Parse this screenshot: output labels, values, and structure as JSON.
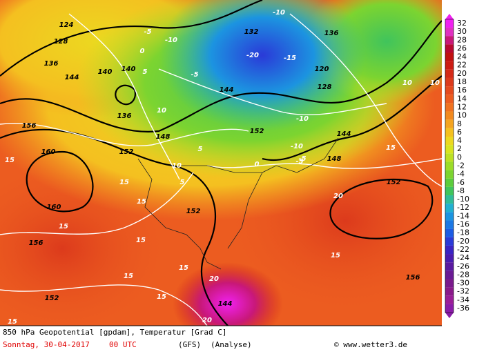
{
  "header": {
    "title": "850 hPa Geopotential [gpdam], Temperatur [Grad C]",
    "date": "Sonntag, 30-04-2017",
    "time": "00 UTC",
    "model": "(GFS)",
    "run": "(Analyse)",
    "credit": "© www.wetter3.de"
  },
  "colorbar": {
    "levels": [
      32,
      30,
      28,
      26,
      24,
      22,
      20,
      18,
      16,
      14,
      12,
      10,
      8,
      6,
      4,
      2,
      0,
      -2,
      -4,
      -6,
      -8,
      -10,
      -12,
      -14,
      -16,
      -18,
      -20,
      -22,
      -24,
      -26,
      -28,
      -30,
      -32,
      -34,
      -36
    ],
    "colors": [
      "#f020f0",
      "#e030c0",
      "#c81878",
      "#b80830",
      "#c01010",
      "#cc1c14",
      "#d42a18",
      "#dc3a1c",
      "#e44a1e",
      "#ec5c20",
      "#f07220",
      "#f28a20",
      "#f4a420",
      "#f4c020",
      "#ecd820",
      "#d8e420",
      "#bce024",
      "#9cdc28",
      "#7cd430",
      "#5ccc3c",
      "#40c45c",
      "#30bc98",
      "#22b0d0",
      "#1c94e0",
      "#1c78e4",
      "#1c5ce4",
      "#2a3ad8",
      "#3a24c4",
      "#4a1cb0",
      "#5a1aa0",
      "#6a1a94",
      "#7a1a8c",
      "#8a1a8a",
      "#9a1e98",
      "#8a1ca8"
    ]
  },
  "map_labels": [
    "124",
    "128",
    "136",
    "144",
    "140",
    "140",
    "136",
    "-5",
    "-10",
    "0",
    "5",
    "132",
    "-20",
    "-15",
    "-10",
    "136",
    "120",
    "128",
    "-10",
    "-5",
    "10",
    "10",
    "15",
    "156",
    "160",
    "160",
    "156",
    "152",
    "152",
    "-5",
    "148",
    "144",
    "152",
    "144",
    "148",
    "-10",
    "5",
    "0",
    "-5",
    "10",
    "15",
    "15",
    "20",
    "15",
    "15",
    "15",
    "15",
    "15",
    "144",
    "20",
    "15",
    "20",
    "15",
    "5",
    "10",
    "156",
    "152",
    "152",
    "15"
  ]
}
